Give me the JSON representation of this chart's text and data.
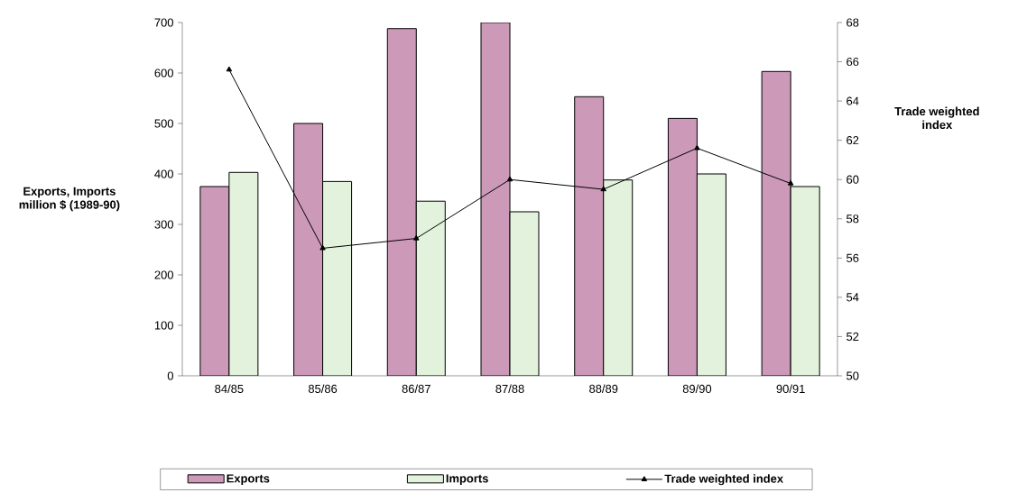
{
  "chart_data": {
    "type": "bar",
    "ylabel": "Exports, Imports million $ (1989-90)",
    "y2label": "Trade weighted index",
    "categories": [
      "84/85",
      "85/86",
      "86/87",
      "87/88",
      "88/89",
      "89/90",
      "90/91"
    ],
    "series": [
      {
        "name": "Exports",
        "color": "#cc99b8",
        "values": [
          375,
          500,
          688,
          700,
          553,
          510,
          603
        ]
      },
      {
        "name": "Imports",
        "color": "#e2f2dc",
        "values": [
          403,
          385,
          346,
          325,
          388,
          400,
          375
        ]
      },
      {
        "name": "Trade weighted index",
        "type": "line",
        "axis": "y2",
        "color": "#000000",
        "values": [
          65.6,
          56.5,
          57.0,
          60.0,
          59.5,
          61.6,
          59.8
        ]
      }
    ],
    "ylim": [
      0,
      700
    ],
    "yticks": [
      0,
      100,
      200,
      300,
      400,
      500,
      600,
      700
    ],
    "y2lim": [
      50,
      68
    ],
    "y2ticks": [
      50,
      52,
      54,
      56,
      58,
      60,
      62,
      64,
      66,
      68
    ],
    "legend": "bottom",
    "marker": "triangle",
    "line_style": "solid"
  }
}
